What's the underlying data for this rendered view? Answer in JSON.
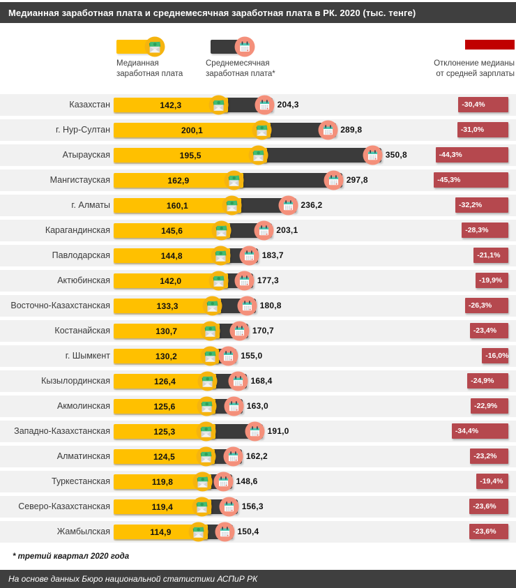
{
  "title": "Медианная заработная плата и среднемесячная заработная плата в РК. 2020 (тыс. тенге)",
  "legend": {
    "median": {
      "line1": "Медианная",
      "line2": "заработная плата"
    },
    "average": {
      "line1": "Среднемесячная",
      "line2": "заработная плата*"
    },
    "deviation": {
      "line1": "Отклонение медианы",
      "line2": "от средней зарплаты"
    }
  },
  "rows": [
    {
      "region": "Казахстан",
      "median": 142.3,
      "median_text": "142,3",
      "average": 204.3,
      "average_text": "204,3",
      "deviation": -30.4,
      "deviation_text": "-30,4%"
    },
    {
      "region": "г. Нур-Султан",
      "median": 200.1,
      "median_text": "200,1",
      "average": 289.8,
      "average_text": "289,8",
      "deviation": -31.0,
      "deviation_text": "-31,0%"
    },
    {
      "region": "Атырауская",
      "median": 195.5,
      "median_text": "195,5",
      "average": 350.8,
      "average_text": "350,8",
      "deviation": -44.3,
      "deviation_text": "-44,3%"
    },
    {
      "region": "Мангистауская",
      "median": 162.9,
      "median_text": "162,9",
      "average": 297.8,
      "average_text": "297,8",
      "deviation": -45.3,
      "deviation_text": "-45,3%"
    },
    {
      "region": "г. Алматы",
      "median": 160.1,
      "median_text": "160,1",
      "average": 236.2,
      "average_text": "236,2",
      "deviation": -32.2,
      "deviation_text": "-32,2%"
    },
    {
      "region": "Карагандинская",
      "median": 145.6,
      "median_text": "145,6",
      "average": 203.1,
      "average_text": "203,1",
      "deviation": -28.3,
      "deviation_text": "-28,3%"
    },
    {
      "region": "Павлодарская",
      "median": 144.8,
      "median_text": "144,8",
      "average": 183.7,
      "average_text": "183,7",
      "deviation": -21.1,
      "deviation_text": "-21,1%"
    },
    {
      "region": "Актюбинская",
      "median": 142.0,
      "median_text": "142,0",
      "average": 177.3,
      "average_text": "177,3",
      "deviation": -19.9,
      "deviation_text": "-19,9%"
    },
    {
      "region": "Восточно-Казахстанская",
      "median": 133.3,
      "median_text": "133,3",
      "average": 180.8,
      "average_text": "180,8",
      "deviation": -26.3,
      "deviation_text": "-26,3%"
    },
    {
      "region": "Костанайская",
      "median": 130.7,
      "median_text": "130,7",
      "average": 170.7,
      "average_text": "170,7",
      "deviation": -23.4,
      "deviation_text": "-23,4%"
    },
    {
      "region": "г. Шымкент",
      "median": 130.2,
      "median_text": "130,2",
      "average": 155.0,
      "average_text": "155,0",
      "deviation": -16.0,
      "deviation_text": "-16,0%"
    },
    {
      "region": "Кызылординская",
      "median": 126.4,
      "median_text": "126,4",
      "average": 168.4,
      "average_text": "168,4",
      "deviation": -24.9,
      "deviation_text": "-24,9%"
    },
    {
      "region": "Акмолинская",
      "median": 125.6,
      "median_text": "125,6",
      "average": 163.0,
      "average_text": "163,0",
      "deviation": -22.9,
      "deviation_text": "-22,9%"
    },
    {
      "region": "Западно-Казахстанская",
      "median": 125.3,
      "median_text": "125,3",
      "average": 191.0,
      "average_text": "191,0",
      "deviation": -34.4,
      "deviation_text": "-34,4%"
    },
    {
      "region": "Алматинская",
      "median": 124.5,
      "median_text": "124,5",
      "average": 162.2,
      "average_text": "162,2",
      "deviation": -23.2,
      "deviation_text": "-23,2%"
    },
    {
      "region": "Туркестанская",
      "median": 119.8,
      "median_text": "119,8",
      "average": 148.6,
      "average_text": "148,6",
      "deviation": -19.4,
      "deviation_text": "-19,4%"
    },
    {
      "region": "Северо-Казахстанская",
      "median": 119.4,
      "median_text": "119,4",
      "average": 156.3,
      "average_text": "156,3",
      "deviation": -23.6,
      "deviation_text": "-23,6%"
    },
    {
      "region": "Жамбылская",
      "median": 114.9,
      "median_text": "114,9",
      "average": 150.4,
      "average_text": "150,4",
      "deviation": -23.6,
      "deviation_text": "-23,6%"
    }
  ],
  "footnote": "* третий квартал 2020 года",
  "source": "На основе данных Бюро национальной статистики  АСПиР РК",
  "colors": {
    "title_bar": "#3F3F3F",
    "median_bar": "#FFC000",
    "average_bar": "#3B3B3B",
    "deviation_badge": "#B5484E",
    "legend_red": "#C00000",
    "row_band": "#F1F1F1",
    "icon_gold_circle": "#F5B40F",
    "icon_salmon_circle": "#F4907B",
    "icon_calendar_teal": "#4CC8B2",
    "icon_money_green": "#41BD73"
  },
  "chart_data": {
    "type": "bar",
    "orientation": "horizontal",
    "title": "Медианная заработная плата и среднемесячная заработная плата в РК. 2020 (тыс. тенге)",
    "unit": "тыс. тенге",
    "categories": [
      "Казахстан",
      "г. Нур-Султан",
      "Атырауская",
      "Мангистауская",
      "г. Алматы",
      "Карагандинская",
      "Павлодарская",
      "Актюбинская",
      "Восточно-Казахстанская",
      "Костанайская",
      "г. Шымкент",
      "Кызылординская",
      "Акмолинская",
      "Западно-Казахстанская",
      "Алматинская",
      "Туркестанская",
      "Северо-Казахстанская",
      "Жамбылская"
    ],
    "series": [
      {
        "name": "Медианная заработная плата",
        "values": [
          142.3,
          200.1,
          195.5,
          162.9,
          160.1,
          145.6,
          144.8,
          142.0,
          133.3,
          130.7,
          130.2,
          126.4,
          125.6,
          125.3,
          124.5,
          119.8,
          119.4,
          114.9
        ]
      },
      {
        "name": "Среднемесячная заработная плата*",
        "values": [
          204.3,
          289.8,
          350.8,
          297.8,
          236.2,
          203.1,
          183.7,
          177.3,
          180.8,
          170.7,
          155.0,
          168.4,
          163.0,
          191.0,
          162.2,
          148.6,
          156.3,
          150.4
        ]
      },
      {
        "name": "Отклонение медианы от средней зарплаты, %",
        "values": [
          -30.4,
          -31.0,
          -44.3,
          -45.3,
          -32.2,
          -28.3,
          -21.1,
          -19.9,
          -26.3,
          -23.4,
          -16.0,
          -24.9,
          -22.9,
          -34.4,
          -23.2,
          -19.4,
          -23.6,
          -23.6
        ]
      }
    ],
    "xlim": [
      0,
      360
    ],
    "grid": false,
    "legend_position": "top",
    "footnote": "* третий квартал 2020 года",
    "source": "На основе данных Бюро национальной статистики АСПиР РК"
  }
}
